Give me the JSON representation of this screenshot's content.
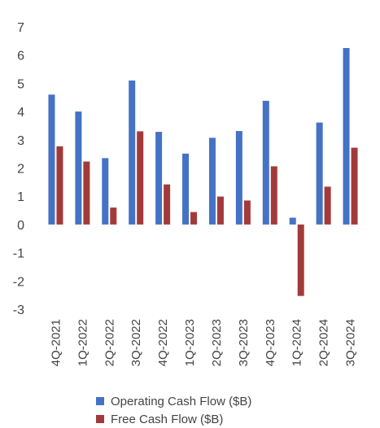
{
  "chart_data": {
    "type": "bar",
    "categories": [
      "4Q-2021",
      "1Q-2022",
      "2Q-2022",
      "3Q-2022",
      "4Q-2022",
      "1Q-2023",
      "2Q-2023",
      "3Q-2023",
      "4Q-2023",
      "1Q-2024",
      "2Q-2024",
      "3Q-2024"
    ],
    "series": [
      {
        "name": "Operating Cash Flow ($B)",
        "color": "#4472C4",
        "values": [
          4.6,
          4.0,
          2.35,
          5.1,
          3.28,
          2.51,
          3.07,
          3.31,
          4.38,
          0.24,
          3.61,
          6.25
        ]
      },
      {
        "name": "Free Cash Flow ($B)",
        "color": "#A33A3A",
        "values": [
          2.77,
          2.23,
          0.6,
          3.3,
          1.42,
          0.44,
          0.99,
          0.85,
          2.06,
          -2.53,
          1.34,
          2.72
        ]
      }
    ],
    "ylim": [
      -3,
      7
    ],
    "yticks": [
      7,
      6,
      5,
      4,
      3,
      2,
      1,
      0,
      -1,
      -2,
      -3
    ],
    "grid": false,
    "legend": "bottom",
    "title": "",
    "xlabel": "",
    "ylabel": ""
  }
}
